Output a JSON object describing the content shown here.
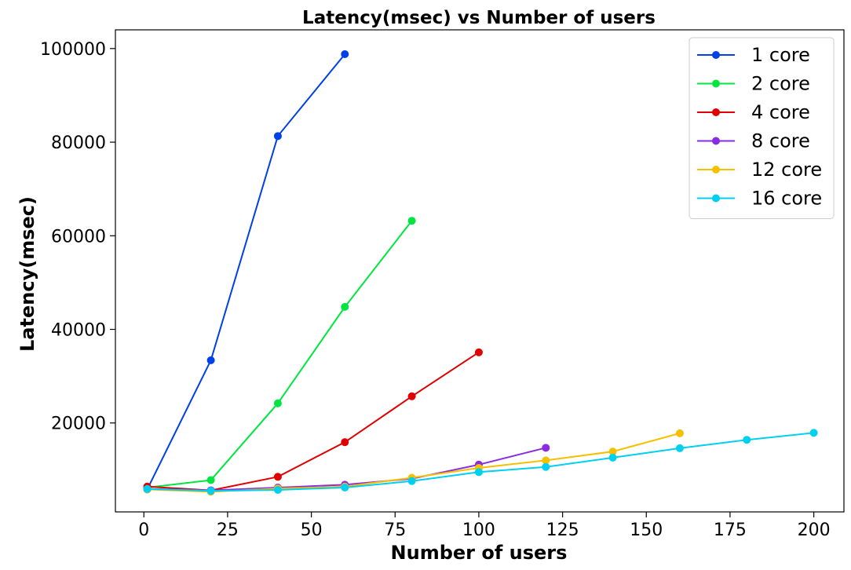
{
  "chart_data": {
    "type": "line",
    "title": "Latency(msec) vs Number of users",
    "xlabel": "Number of users",
    "ylabel": "Latency(msec)",
    "xlim": [
      -8.5,
      209
    ],
    "ylim": [
      1000,
      104000
    ],
    "xticks": [
      0,
      25,
      50,
      75,
      100,
      125,
      150,
      175,
      200
    ],
    "yticks": [
      20000,
      40000,
      60000,
      80000,
      100000
    ],
    "grid": false,
    "legend_position": "top-right",
    "series": [
      {
        "name": "1 core",
        "color": "#0040E8",
        "x": [
          1,
          20,
          40,
          60
        ],
        "y": [
          5800,
          33400,
          81300,
          98800
        ]
      },
      {
        "name": "2 core",
        "color": "#00E640",
        "x": [
          1,
          20,
          40,
          60,
          80
        ],
        "y": [
          6200,
          7800,
          24200,
          44800,
          63200
        ]
      },
      {
        "name": "4 core",
        "color": "#E00000",
        "x": [
          1,
          20,
          40,
          60,
          80,
          100
        ],
        "y": [
          6400,
          5600,
          8500,
          15900,
          25700,
          35100
        ]
      },
      {
        "name": "8 core",
        "color": "#8A2BE2",
        "x": [
          1,
          20,
          40,
          60,
          80,
          100,
          120
        ],
        "y": [
          5900,
          5600,
          6200,
          6800,
          8100,
          11100,
          14700
        ]
      },
      {
        "name": "12 core",
        "color": "#F5C000",
        "x": [
          1,
          20,
          40,
          60,
          80,
          100,
          120,
          140,
          160
        ],
        "y": [
          5800,
          5300,
          6000,
          6400,
          8300,
          10400,
          12000,
          13900,
          17800
        ]
      },
      {
        "name": "16 core",
        "color": "#00D0F0",
        "x": [
          1,
          20,
          40,
          60,
          80,
          100,
          120,
          140,
          160,
          180,
          200
        ],
        "y": [
          5900,
          5500,
          5700,
          6200,
          7600,
          9500,
          10600,
          12600,
          14600,
          16400,
          17900
        ]
      }
    ]
  }
}
